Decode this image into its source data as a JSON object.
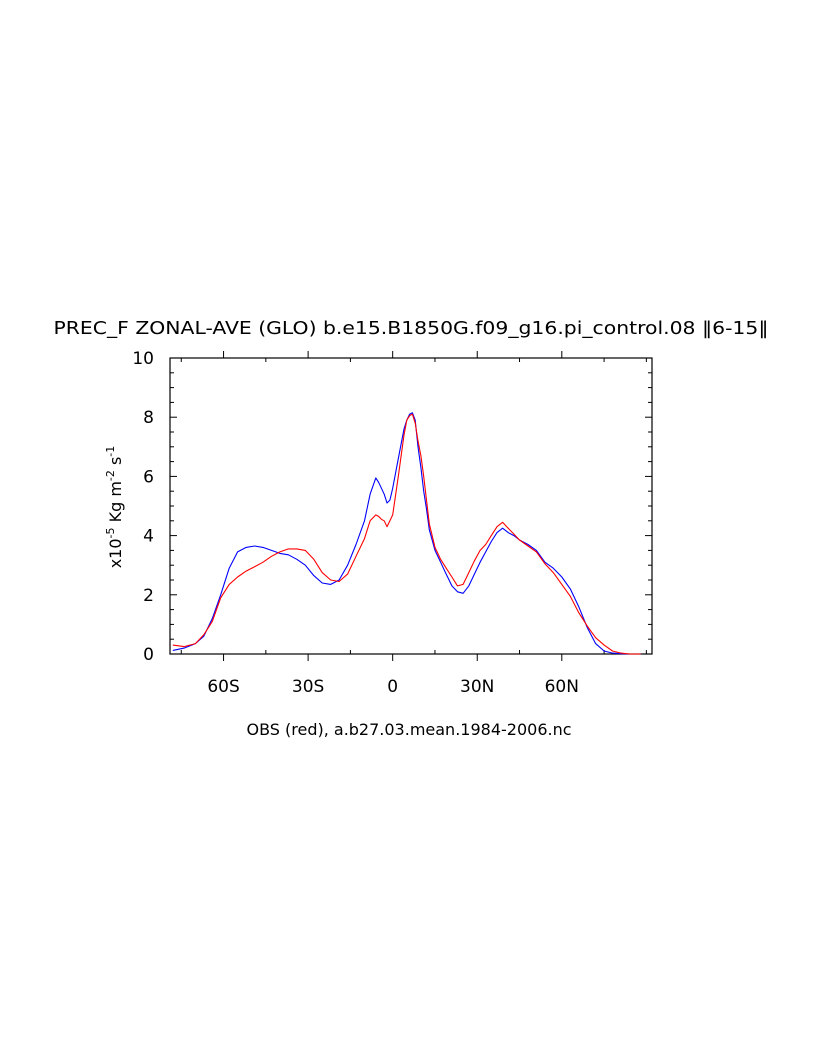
{
  "chart_data": {
    "type": "line",
    "title": "PREC_F ZONAL-AVE (GLO) b.e15.B1850G.f09_g16.pi_control.08 ‖6-15‖",
    "xlabel": "OBS (red), a.b27.03.mean.1984-2006.nc",
    "ylabel": {
      "prefix": "x10",
      "exp1": "-5",
      "mid": " Kg m",
      "exp2": "-2",
      "mid2": " s",
      "exp3": "-1"
    },
    "xlim": [
      -79,
      92
    ],
    "ylim": [
      0,
      10
    ],
    "grid": false,
    "xticks": [
      {
        "value": -60,
        "label": "60S"
      },
      {
        "value": -30,
        "label": "30S"
      },
      {
        "value": 0,
        "label": "0"
      },
      {
        "value": 30,
        "label": "30N"
      },
      {
        "value": 60,
        "label": "60N"
      }
    ],
    "yticks": [
      {
        "value": 0,
        "label": "0"
      },
      {
        "value": 2,
        "label": "2"
      },
      {
        "value": 4,
        "label": "4"
      },
      {
        "value": 6,
        "label": "6"
      },
      {
        "value": 8,
        "label": "8"
      },
      {
        "value": 10,
        "label": "10"
      }
    ],
    "series": [
      {
        "color": "#0000ff",
        "points": [
          [
            -78,
            0.12
          ],
          [
            -74,
            0.2
          ],
          [
            -70,
            0.35
          ],
          [
            -67,
            0.6
          ],
          [
            -64,
            1.2
          ],
          [
            -61,
            2.0
          ],
          [
            -58,
            2.9
          ],
          [
            -55,
            3.45
          ],
          [
            -52,
            3.6
          ],
          [
            -49,
            3.65
          ],
          [
            -46,
            3.6
          ],
          [
            -43,
            3.5
          ],
          [
            -40,
            3.4
          ],
          [
            -37,
            3.35
          ],
          [
            -34,
            3.2
          ],
          [
            -31,
            3.0
          ],
          [
            -28,
            2.65
          ],
          [
            -25,
            2.4
          ],
          [
            -22,
            2.35
          ],
          [
            -19,
            2.5
          ],
          [
            -16,
            3.0
          ],
          [
            -13,
            3.7
          ],
          [
            -10,
            4.5
          ],
          [
            -8,
            5.4
          ],
          [
            -6,
            5.95
          ],
          [
            -5,
            5.8
          ],
          [
            -4,
            5.6
          ],
          [
            -3,
            5.4
          ],
          [
            -2,
            5.1
          ],
          [
            -1,
            5.2
          ],
          [
            0,
            5.6
          ],
          [
            2,
            6.6
          ],
          [
            4,
            7.6
          ],
          [
            5,
            7.9
          ],
          [
            6,
            8.1
          ],
          [
            7,
            8.15
          ],
          [
            8,
            7.9
          ],
          [
            9,
            7.0
          ],
          [
            10,
            6.3
          ],
          [
            11,
            5.5
          ],
          [
            12,
            4.9
          ],
          [
            13,
            4.2
          ],
          [
            15,
            3.5
          ],
          [
            17,
            3.1
          ],
          [
            19,
            2.7
          ],
          [
            21,
            2.3
          ],
          [
            23,
            2.1
          ],
          [
            25,
            2.05
          ],
          [
            27,
            2.3
          ],
          [
            29,
            2.7
          ],
          [
            31,
            3.1
          ],
          [
            33,
            3.45
          ],
          [
            35,
            3.8
          ],
          [
            37,
            4.1
          ],
          [
            39,
            4.25
          ],
          [
            41,
            4.1
          ],
          [
            43,
            4.0
          ],
          [
            45,
            3.85
          ],
          [
            48,
            3.7
          ],
          [
            51,
            3.5
          ],
          [
            54,
            3.1
          ],
          [
            57,
            2.9
          ],
          [
            60,
            2.6
          ],
          [
            63,
            2.2
          ],
          [
            66,
            1.6
          ],
          [
            69,
            0.9
          ],
          [
            72,
            0.35
          ],
          [
            75,
            0.1
          ],
          [
            78,
            0.03
          ],
          [
            81,
            0.01
          ],
          [
            84,
            0.0
          ],
          [
            88,
            0.0
          ]
        ]
      },
      {
        "color": "#ff0000",
        "points": [
          [
            -78,
            0.3
          ],
          [
            -74,
            0.25
          ],
          [
            -70,
            0.35
          ],
          [
            -67,
            0.65
          ],
          [
            -64,
            1.1
          ],
          [
            -61,
            1.9
          ],
          [
            -58,
            2.35
          ],
          [
            -55,
            2.6
          ],
          [
            -52,
            2.8
          ],
          [
            -49,
            2.95
          ],
          [
            -46,
            3.1
          ],
          [
            -43,
            3.3
          ],
          [
            -40,
            3.45
          ],
          [
            -37,
            3.55
          ],
          [
            -34,
            3.55
          ],
          [
            -31,
            3.5
          ],
          [
            -28,
            3.2
          ],
          [
            -25,
            2.75
          ],
          [
            -22,
            2.5
          ],
          [
            -19,
            2.45
          ],
          [
            -16,
            2.7
          ],
          [
            -13,
            3.3
          ],
          [
            -10,
            3.9
          ],
          [
            -8,
            4.5
          ],
          [
            -6,
            4.7
          ],
          [
            -5,
            4.65
          ],
          [
            -4,
            4.55
          ],
          [
            -3,
            4.5
          ],
          [
            -2,
            4.3
          ],
          [
            -1,
            4.5
          ],
          [
            0,
            4.7
          ],
          [
            2,
            6.0
          ],
          [
            4,
            7.4
          ],
          [
            5,
            7.9
          ],
          [
            6,
            8.05
          ],
          [
            7,
            8.1
          ],
          [
            8,
            7.8
          ],
          [
            9,
            7.2
          ],
          [
            10,
            6.7
          ],
          [
            11,
            6.0
          ],
          [
            12,
            5.2
          ],
          [
            13,
            4.4
          ],
          [
            15,
            3.6
          ],
          [
            17,
            3.2
          ],
          [
            19,
            2.9
          ],
          [
            21,
            2.6
          ],
          [
            23,
            2.3
          ],
          [
            25,
            2.35
          ],
          [
            27,
            2.75
          ],
          [
            29,
            3.15
          ],
          [
            31,
            3.5
          ],
          [
            33,
            3.7
          ],
          [
            35,
            4.0
          ],
          [
            37,
            4.3
          ],
          [
            39,
            4.45
          ],
          [
            41,
            4.25
          ],
          [
            43,
            4.05
          ],
          [
            45,
            3.85
          ],
          [
            48,
            3.65
          ],
          [
            51,
            3.45
          ],
          [
            54,
            3.05
          ],
          [
            57,
            2.75
          ],
          [
            60,
            2.35
          ],
          [
            63,
            1.95
          ],
          [
            66,
            1.4
          ],
          [
            69,
            0.95
          ],
          [
            72,
            0.55
          ],
          [
            75,
            0.3
          ],
          [
            78,
            0.1
          ],
          [
            81,
            0.03
          ],
          [
            84,
            0.0
          ],
          [
            88,
            0.0
          ]
        ]
      }
    ]
  }
}
